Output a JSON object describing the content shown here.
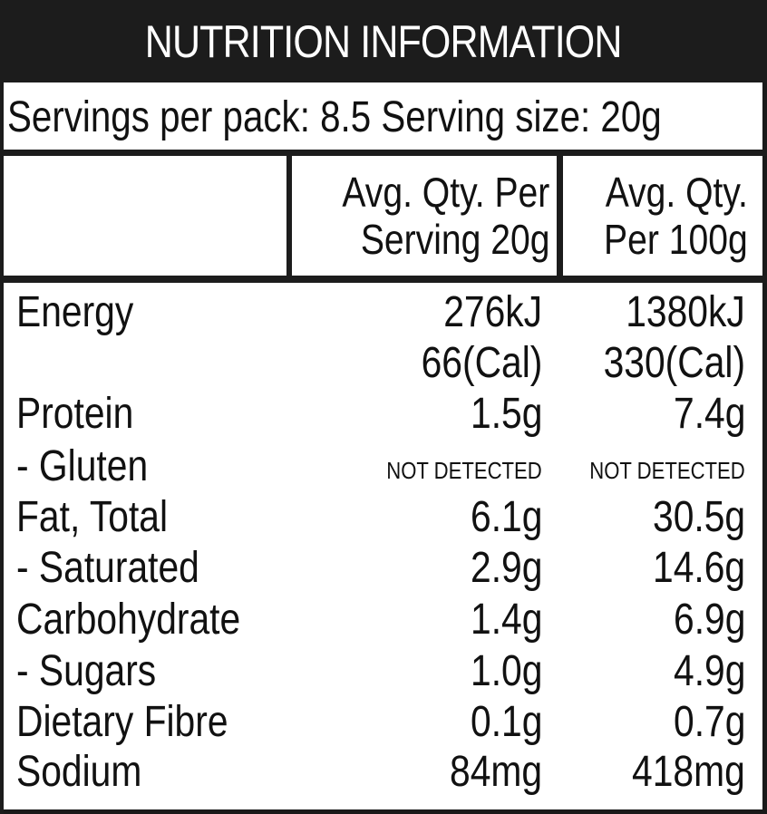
{
  "title": "NUTRITION INFORMATION",
  "serving_line": "Servings per pack: 8.5 Serving size: 20g",
  "header": {
    "col1_line1": "Avg. Qty. Per",
    "col1_line2": "Serving 20g",
    "col2_line1": "Avg. Qty.",
    "col2_line2": "Per 100g"
  },
  "rows": [
    {
      "label": "Energy",
      "per_serving": "276kJ",
      "per_100g": "1380kJ"
    },
    {
      "label": "",
      "per_serving": "66(Cal)",
      "per_100g": "330(Cal)"
    },
    {
      "label": "Protein",
      "per_serving": "1.5g",
      "per_100g": "7.4g"
    },
    {
      "label": "- Gluten",
      "per_serving": "NOT DETECTED",
      "per_100g": "NOT DETECTED"
    },
    {
      "label": "Fat, Total",
      "per_serving": "6.1g",
      "per_100g": "30.5g"
    },
    {
      "label": "- Saturated",
      "per_serving": "2.9g",
      "per_100g": "14.6g"
    },
    {
      "label": "Carbohydrate",
      "per_serving": "1.4g",
      "per_100g": "6.9g"
    },
    {
      "label": "- Sugars",
      "per_serving": "1.0g",
      "per_100g": "4.9g"
    },
    {
      "label": "Dietary Fibre",
      "per_serving": "0.1g",
      "per_100g": "0.7g"
    },
    {
      "label": "Sodium",
      "per_serving": "84mg",
      "per_100g": "418mg"
    }
  ],
  "colors": {
    "bar": "#1c1c1c",
    "text": "#111111",
    "background": "#ffffff"
  }
}
